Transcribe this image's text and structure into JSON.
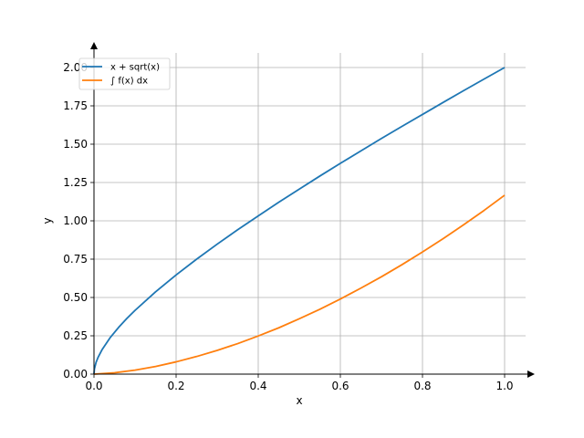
{
  "chart_data": {
    "type": "line",
    "title": "",
    "xlabel": "x",
    "ylabel": "y",
    "xlim": [
      0,
      1.0
    ],
    "ylim": [
      0,
      2.1
    ],
    "x_ticks": [
      0.0,
      0.2,
      0.4,
      0.6,
      0.8,
      1.0
    ],
    "x_tick_labels": [
      "0.0",
      "0.2",
      "0.4",
      "0.6",
      "0.8",
      "1.0"
    ],
    "y_ticks": [
      0.0,
      0.25,
      0.5,
      0.75,
      1.0,
      1.25,
      1.5,
      1.75,
      2.0
    ],
    "y_tick_labels": [
      "0.00",
      "0.25",
      "0.50",
      "0.75",
      "1.00",
      "1.25",
      "1.50",
      "1.75",
      "2.00"
    ],
    "grid": true,
    "legend_position": "top-left",
    "series": [
      {
        "name": "x + sqrt(x)",
        "color": "#1f77b4",
        "x": [
          0.0,
          0.001,
          0.005,
          0.01,
          0.02,
          0.04,
          0.06,
          0.08,
          0.1,
          0.15,
          0.2,
          0.25,
          0.3,
          0.35,
          0.4,
          0.45,
          0.5,
          0.55,
          0.6,
          0.65,
          0.7,
          0.75,
          0.8,
          0.85,
          0.9,
          0.95,
          1.0
        ],
        "y": [
          0.0,
          0.033,
          0.076,
          0.11,
          0.161,
          0.24,
          0.305,
          0.363,
          0.416,
          0.537,
          0.647,
          0.75,
          0.848,
          0.942,
          1.032,
          1.121,
          1.207,
          1.292,
          1.375,
          1.456,
          1.537,
          1.616,
          1.694,
          1.772,
          1.849,
          1.925,
          2.0
        ]
      },
      {
        "name": "∫ f(x) dx",
        "color": "#ff7f0e",
        "x": [
          0.0,
          0.05,
          0.1,
          0.15,
          0.2,
          0.25,
          0.3,
          0.35,
          0.4,
          0.45,
          0.5,
          0.55,
          0.6,
          0.65,
          0.7,
          0.75,
          0.8,
          0.85,
          0.9,
          0.95,
          1.0
        ],
        "y": [
          0.0,
          0.009,
          0.026,
          0.05,
          0.08,
          0.115,
          0.155,
          0.199,
          0.249,
          0.302,
          0.361,
          0.423,
          0.49,
          0.561,
          0.635,
          0.714,
          0.797,
          0.883,
          0.974,
          1.068,
          1.167
        ]
      }
    ]
  }
}
